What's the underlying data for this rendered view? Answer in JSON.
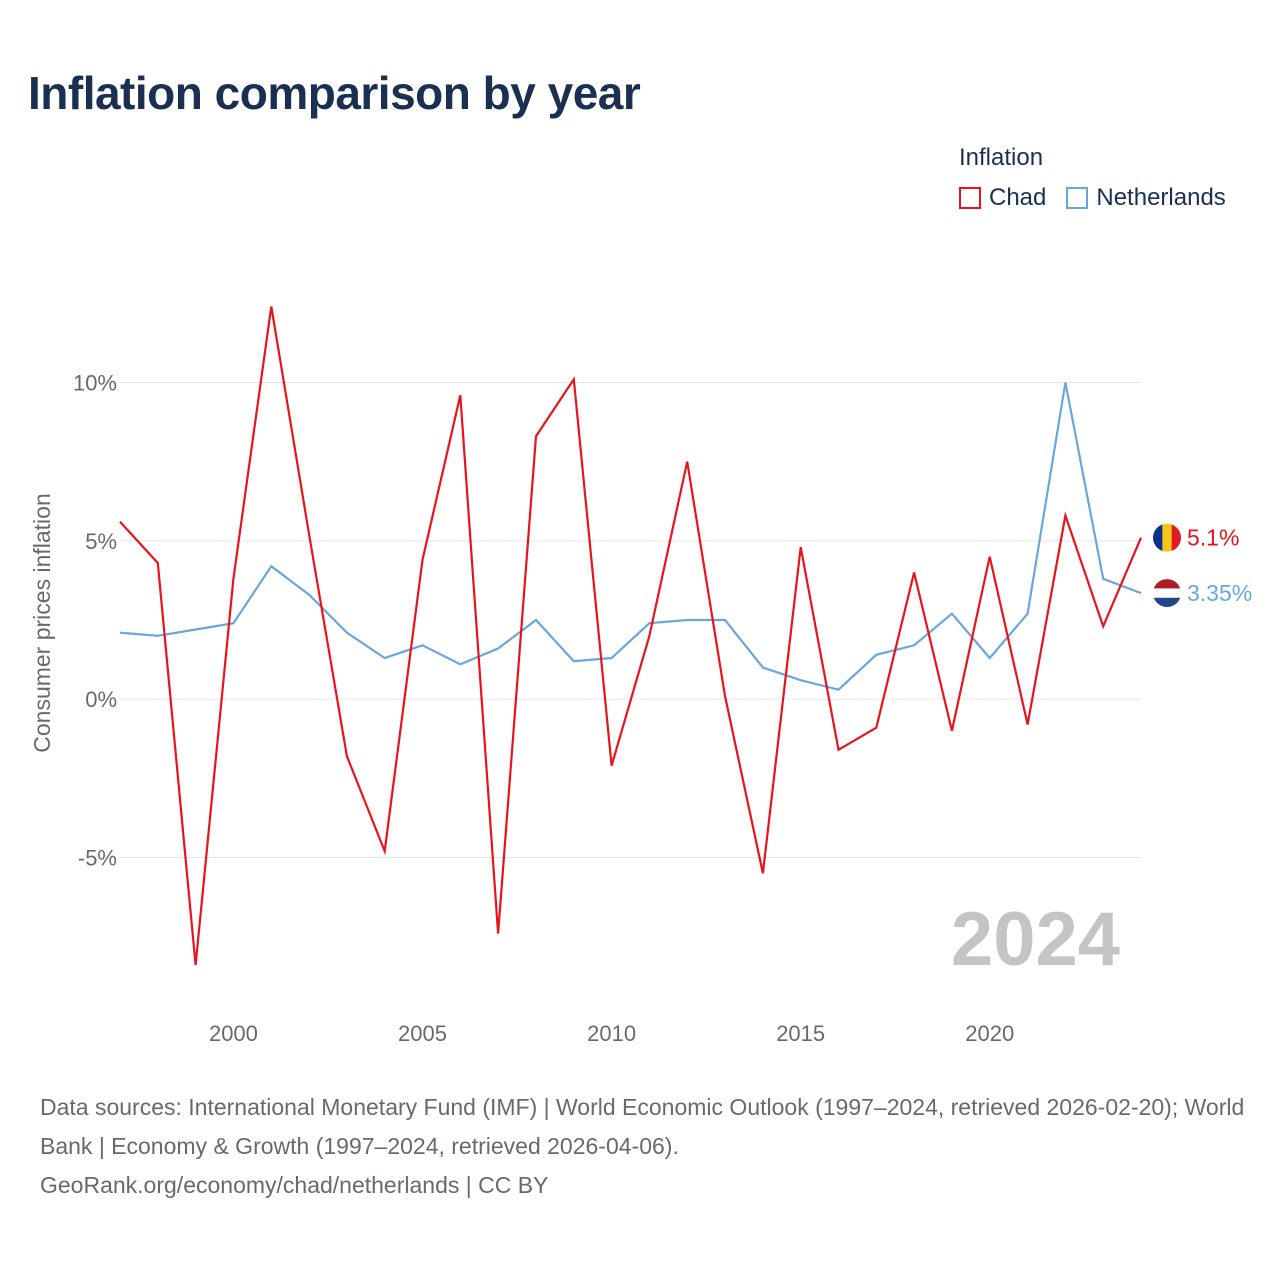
{
  "title": "Inflation comparison by year",
  "legend": {
    "title": "Inflation",
    "items": [
      {
        "name": "Chad",
        "color": "#e8131b"
      },
      {
        "name": "Netherlands",
        "color": "#6aa6de"
      }
    ]
  },
  "chart_data": {
    "type": "line",
    "title": "Inflation comparison by year",
    "xlabel": "",
    "ylabel": "Consumer prices inflation",
    "year_watermark": "2024",
    "xlim": [
      1997,
      2024
    ],
    "ylim": [
      -9.5,
      14.5
    ],
    "x_ticks": [
      2000,
      2005,
      2010,
      2015,
      2020
    ],
    "y_ticks": [
      {
        "value": 10,
        "label": "10%"
      },
      {
        "value": 5,
        "label": "5%"
      },
      {
        "value": 0,
        "label": "0%"
      },
      {
        "value": -5,
        "label": "-5%"
      }
    ],
    "grid": true,
    "x": [
      1997,
      1998,
      1999,
      2000,
      2001,
      2002,
      2003,
      2004,
      2005,
      2006,
      2007,
      2008,
      2009,
      2010,
      2011,
      2012,
      2013,
      2014,
      2015,
      2016,
      2017,
      2018,
      2019,
      2020,
      2021,
      2022,
      2023,
      2024
    ],
    "series": [
      {
        "name": "Chad",
        "color": "#e8131b",
        "end_label": "5.1%",
        "values": [
          5.6,
          4.3,
          -8.4,
          3.8,
          12.4,
          5.2,
          -1.8,
          -4.8,
          4.4,
          9.6,
          -7.4,
          8.3,
          10.1,
          -2.1,
          2.0,
          7.5,
          0.1,
          -5.5,
          4.8,
          -1.6,
          -0.9,
          4.0,
          -1.0,
          4.5,
          -0.8,
          5.8,
          2.3,
          5.1
        ]
      },
      {
        "name": "Netherlands",
        "color": "#6aa6de",
        "end_label": "3.35%",
        "values": [
          2.1,
          2.0,
          2.2,
          2.4,
          4.2,
          3.3,
          2.1,
          1.3,
          1.7,
          1.1,
          1.6,
          2.5,
          1.2,
          1.3,
          2.4,
          2.5,
          2.5,
          1.0,
          0.6,
          0.3,
          1.4,
          1.7,
          2.7,
          1.3,
          2.7,
          10.0,
          3.8,
          3.35
        ]
      }
    ]
  },
  "footer": {
    "sources": "Data sources: International Monetary Fund (IMF) | World Economic Outlook (1997–2024, retrieved 2026-02-20); World Bank | Economy & Growth (1997–2024, retrieved 2026-04-06).",
    "credit": "GeoRank.org/economy/chad/netherlands | CC BY"
  }
}
